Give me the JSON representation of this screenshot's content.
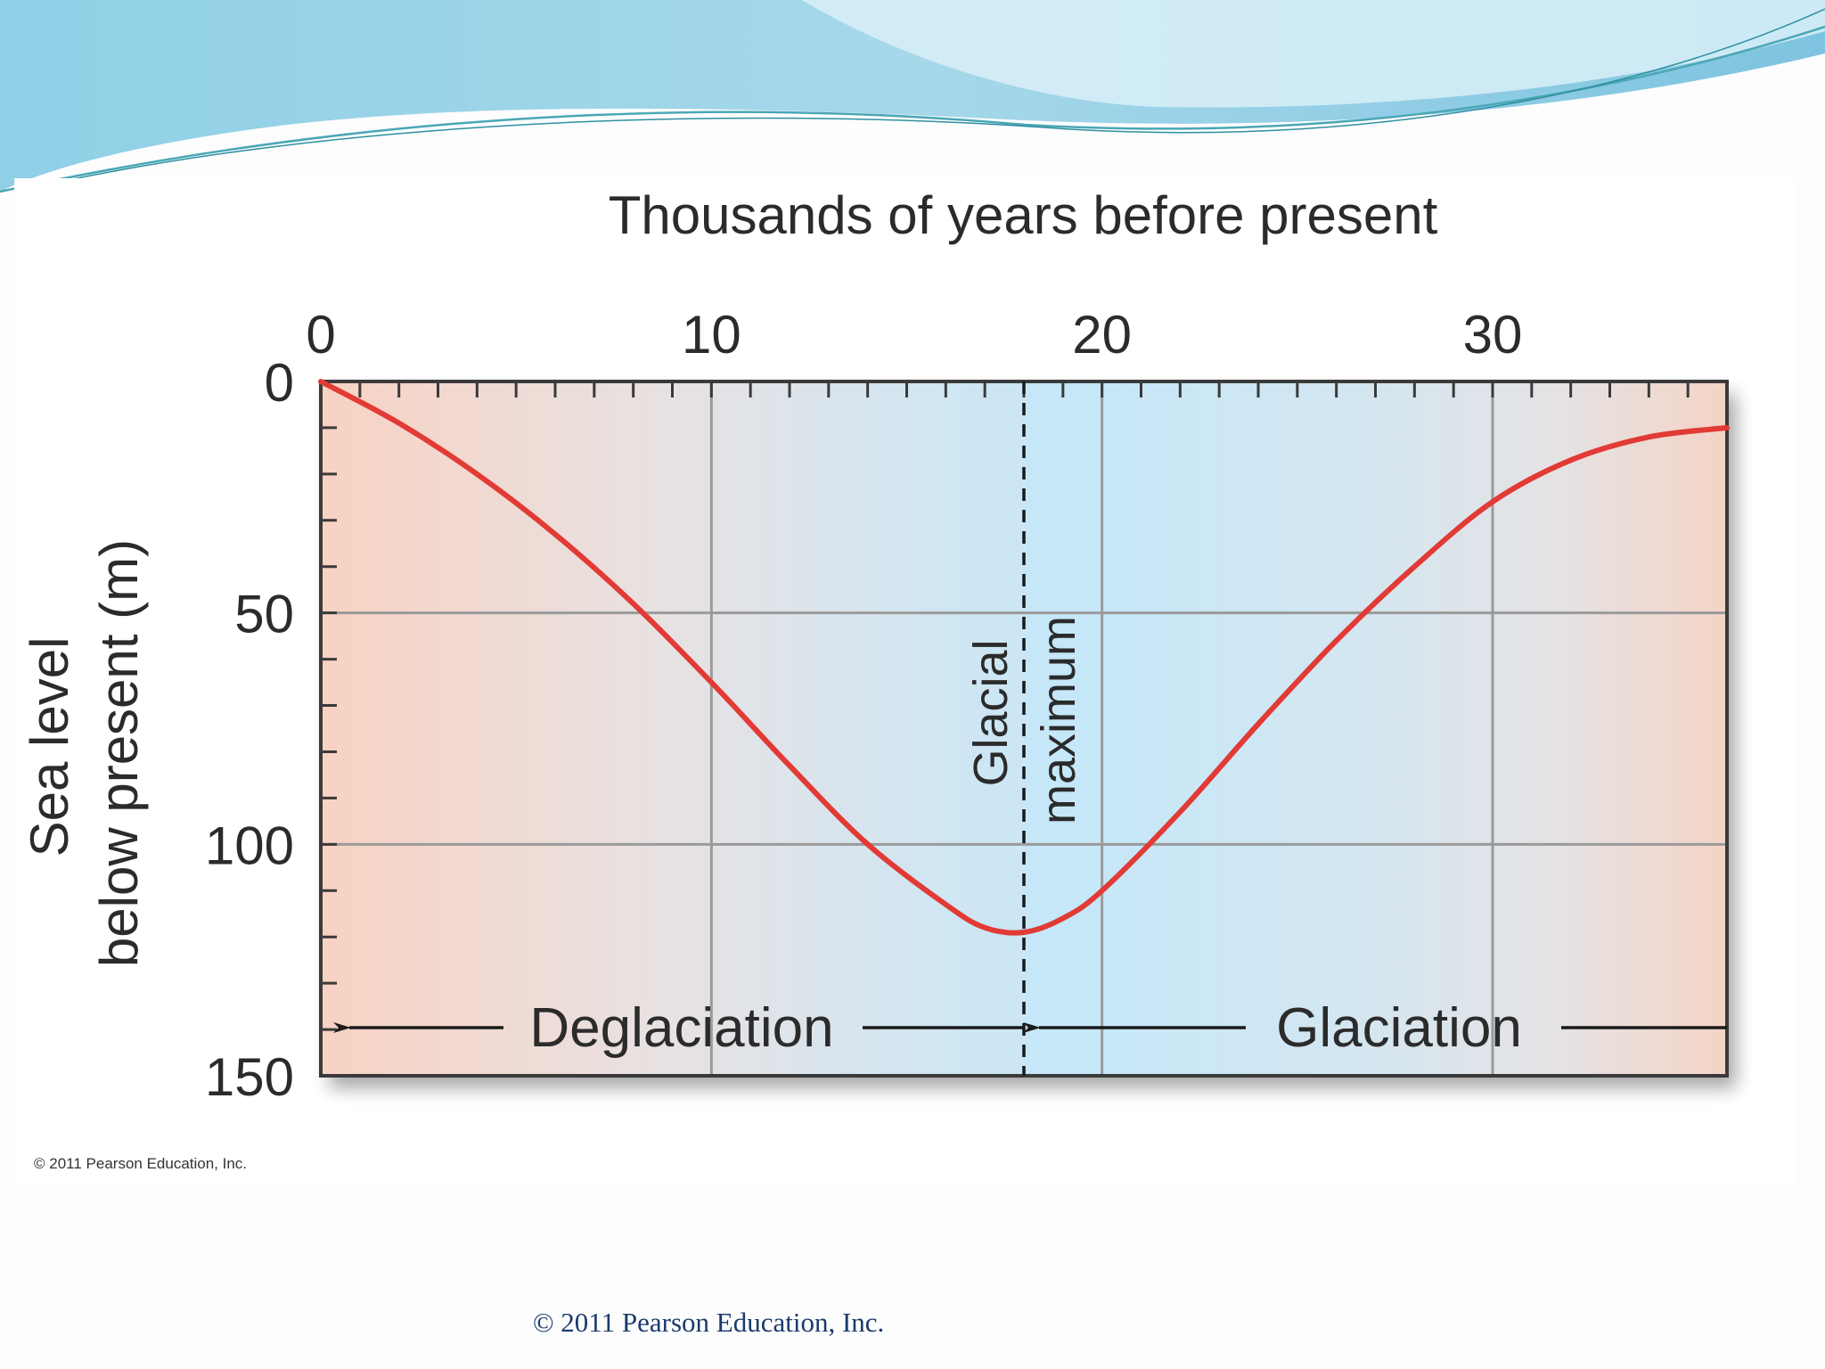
{
  "chart_data": {
    "type": "line",
    "title": "",
    "xlabel": "Thousands of years before present",
    "ylabel_lines": [
      "Sea level",
      "below present (m)"
    ],
    "xlim": [
      0,
      36
    ],
    "ylim": [
      0,
      150
    ],
    "y_inverted": true,
    "x_axis_position": "top",
    "x_ticks": [
      0,
      10,
      20,
      30
    ],
    "y_ticks": [
      0,
      50,
      100,
      150
    ],
    "x_tick_labels": [
      "0",
      "10",
      "20",
      "30"
    ],
    "y_tick_labels": [
      "0",
      "50",
      "100",
      "150"
    ],
    "grid": true,
    "series": [
      {
        "name": "Sea level",
        "color": "#e23a35",
        "x": [
          0,
          2,
          4,
          6,
          8,
          10,
          12,
          14,
          16,
          17,
          18,
          19,
          20,
          22,
          24,
          26,
          28,
          30,
          32,
          34,
          36
        ],
        "y": [
          0,
          9,
          20,
          33,
          48,
          65,
          83,
          100,
          113,
          118,
          119,
          116,
          110,
          93,
          74,
          56,
          40,
          26,
          17,
          12,
          10
        ]
      }
    ],
    "glacial_maximum_x": 18,
    "annotations": {
      "glacial_maximum": [
        "Glacial",
        "maximum"
      ],
      "deglaciation": "Deglaciation",
      "glaciation": "Glaciation"
    },
    "copyright": "© 2011 Pearson Education, Inc."
  },
  "footer": {
    "copyright": "© 2011 Pearson Education, Inc."
  },
  "colors": {
    "line": "#e23a35",
    "warm_band": "#f6d3c6",
    "cold_band": "#cfe8f6",
    "header_wave_dark": "#7fc3df",
    "header_wave_light": "#bfe6f2"
  }
}
